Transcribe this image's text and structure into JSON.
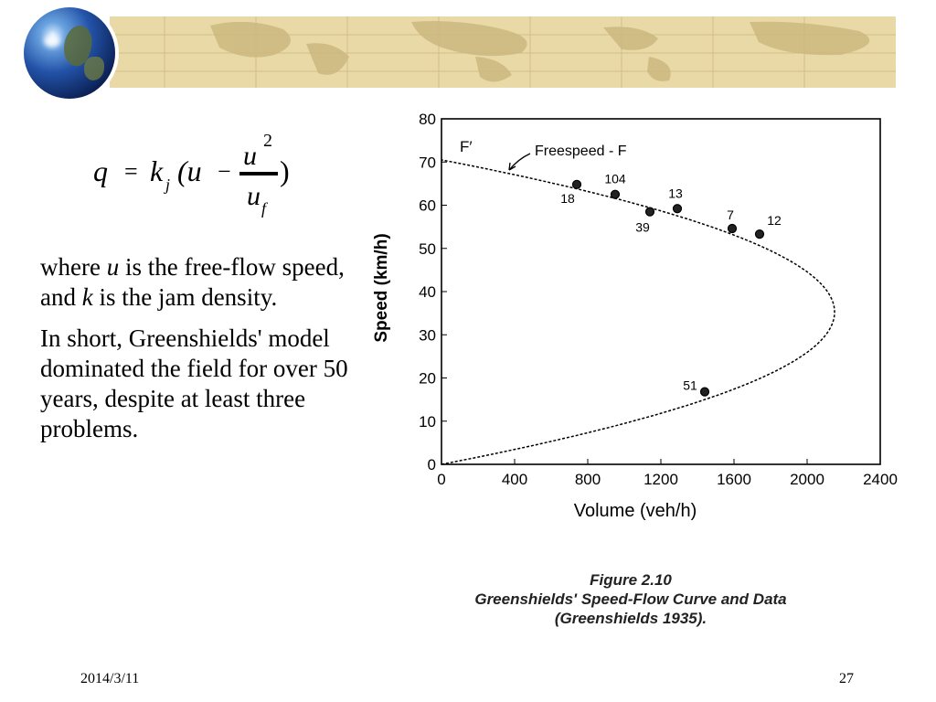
{
  "slide": {
    "paragraph1": {
      "pre": "where ",
      "var_u": "u",
      "mid": " is the free-flow speed, and ",
      "var_k": "k",
      "post": " is the jam density."
    },
    "paragraph2": "In short, Greenshields' model dominated the field for over 50 years, despite at least three problems.",
    "footer_date": "2014/3/11",
    "page_number": "27"
  },
  "formula": {
    "q": "q",
    "eq": "=",
    "k": "k",
    "k_sub": "j",
    "open": "(u",
    "minus": "−",
    "num": "u",
    "num_sup": "2",
    "den": "u",
    "den_sub": "f",
    "close": ")"
  },
  "figure_caption": {
    "line1": "Figure 2.10",
    "line2": "Greenshields' Speed-Flow Curve and Data",
    "line3": "(Greenshields 1935)."
  },
  "colors": {
    "banner": "#e8d9a6",
    "text": "#000000"
  },
  "chart_data": {
    "type": "scatter",
    "xlabel": "Volume (veh/h)",
    "ylabel": "Speed (km/h)",
    "xlim": [
      0,
      2400
    ],
    "ylim": [
      0,
      80
    ],
    "xticks": [
      "0",
      "400",
      "800",
      "1200",
      "1600",
      "2000",
      "2400"
    ],
    "yticks": [
      "0",
      "10",
      "20",
      "30",
      "40",
      "50",
      "60",
      "70",
      "80"
    ],
    "annotations": {
      "f_prime": "F′",
      "freespeed": "Freespeed - F"
    },
    "curve": {
      "free_flow_speed": 70.5,
      "jam_density_veh_per_km": 122
    },
    "points": [
      {
        "x": 740,
        "y": 64.8,
        "label": "18"
      },
      {
        "x": 950,
        "y": 62.5,
        "label": "104"
      },
      {
        "x": 1140,
        "y": 58.5,
        "label": "39"
      },
      {
        "x": 1290,
        "y": 59.2,
        "label": "13"
      },
      {
        "x": 1590,
        "y": 54.6,
        "label": "7"
      },
      {
        "x": 1740,
        "y": 53.3,
        "label": "12"
      },
      {
        "x": 1440,
        "y": 16.8,
        "label": "51"
      }
    ]
  }
}
